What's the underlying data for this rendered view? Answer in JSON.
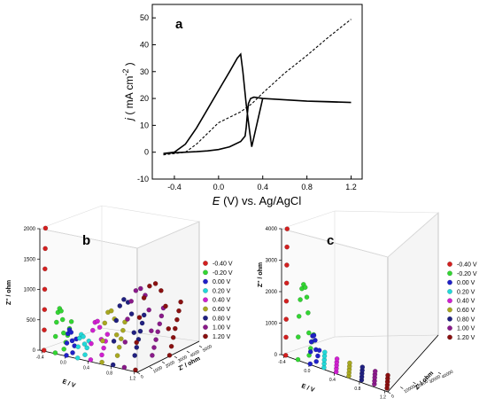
{
  "colors": {
    "s1": "#d32020",
    "s2": "#33d633",
    "s3": "#2020c8",
    "s4": "#22d8d8",
    "s5": "#d020d0",
    "s6": "#a8a820",
    "s7": "#202080",
    "s8": "#8a1a8a",
    "s9": "#8a1010"
  },
  "chart_data": [
    {
      "type": "line",
      "panel_letter": "a",
      "ylabel_j": "j",
      "ylabel_units": "( mA cm",
      "ylabel_sup": "-2",
      "ylabel_close": " )",
      "xlabel_E": "E",
      "xlabel_rest": " (V) vs. Ag/AgCl",
      "xlim": [
        -0.6,
        1.3
      ],
      "ylim": [
        -10,
        55
      ],
      "xticks": [
        -0.4,
        0.0,
        0.4,
        0.8,
        1.2
      ],
      "xtick_labels": [
        "-0.4",
        "0.0",
        "0.4",
        "0.8",
        "1.2"
      ],
      "yticks": [
        -10,
        0,
        10,
        20,
        30,
        40,
        50
      ],
      "ytick_labels": [
        "-10",
        "0",
        "10",
        "20",
        "30",
        "40",
        "50"
      ],
      "series": [
        {
          "style": "solid",
          "x": [
            -0.5,
            -0.4,
            -0.3,
            -0.2,
            -0.1,
            0.0,
            0.1,
            0.17,
            0.2,
            0.22,
            0.25,
            0.28,
            0.3,
            0.4,
            0.6,
            0.8,
            1.0,
            1.2,
            0.8,
            0.6,
            0.4,
            0.32,
            0.29,
            0.27,
            0.26,
            0.25,
            0.24,
            0.2,
            0.1,
            0.0,
            -0.1,
            -0.2,
            -0.3,
            -0.4,
            -0.5
          ],
          "y": [
            -0.5,
            0,
            3,
            9,
            16,
            23,
            30,
            35,
            36.5,
            30,
            18,
            8,
            2,
            20,
            19.5,
            19,
            18.8,
            18.5,
            19,
            19.5,
            20,
            20.5,
            20,
            18,
            14,
            9,
            6,
            4,
            2,
            1,
            0.5,
            0.2,
            0,
            -0.2,
            -0.5
          ]
        },
        {
          "style": "dashed",
          "x": [
            -0.5,
            -0.3,
            -0.2,
            -0.1,
            0.0,
            0.1,
            0.2,
            0.3,
            0.4,
            0.6,
            0.8,
            1.0,
            1.2
          ],
          "y": [
            -1,
            0,
            3,
            7,
            11,
            13,
            15,
            18,
            22,
            29.5,
            36,
            43,
            49.5
          ]
        }
      ]
    },
    {
      "type": "scatter3d",
      "panel_letter": "b",
      "zlabel": "Z'' / ohm",
      "xlabel": "E / V",
      "ylabel": "Z' / ohm",
      "zticks": [
        0,
        500,
        1000,
        1500,
        2000
      ],
      "ztick_labels": [
        "0",
        "500",
        "1000",
        "1500",
        "2000"
      ],
      "xtick_labels": [
        "-0.4",
        "0.0",
        "0.4",
        "0.8",
        "1.2"
      ],
      "ytick_labels": [
        "0",
        "1000",
        "2000",
        "3000",
        "4000",
        "5000"
      ],
      "legend": [
        "-0.40 V",
        "-0.20 V",
        "0.00 V",
        "0.20 V",
        "0.40 V",
        "0.60 V",
        "0.80 V",
        "1.00 V",
        "1.20 V"
      ],
      "zmax": 2000
    },
    {
      "type": "scatter3d",
      "panel_letter": "c",
      "zlabel": "Z'' / ohm",
      "xlabel": "E / V",
      "ylabel": "Z' / ohm",
      "zticks": [
        0,
        1000,
        2000,
        3000,
        4000
      ],
      "ztick_labels": [
        "0",
        "1000",
        "2000",
        "3000",
        "4000"
      ],
      "xtick_labels": [
        "-0.4",
        "0.0",
        "0.4",
        "0.8",
        "1.2"
      ],
      "ytick_labels": [
        "0",
        "10000",
        "20000",
        "30000",
        "40000"
      ],
      "legend": [
        "-0.40 V",
        "-0.20 V",
        "0.00 V",
        "0.20 V",
        "0.40 V",
        "0.60 V",
        "0.80 V",
        "1.00 V",
        "1.20 V"
      ],
      "zmax": 4000
    }
  ]
}
